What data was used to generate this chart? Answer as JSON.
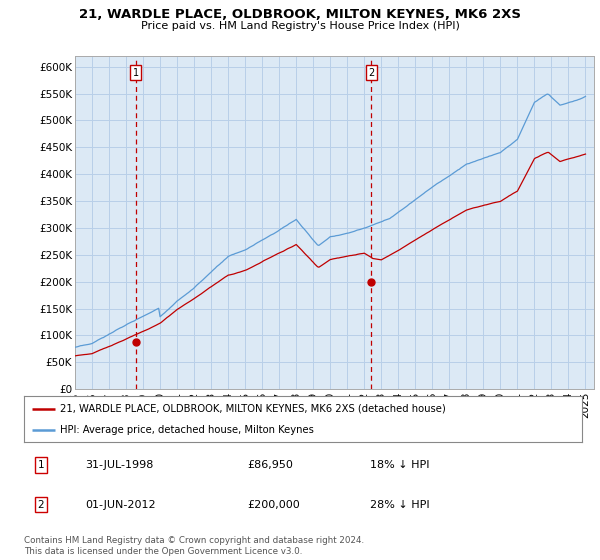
{
  "title": "21, WARDLE PLACE, OLDBROOK, MILTON KEYNES, MK6 2XS",
  "subtitle": "Price paid vs. HM Land Registry's House Price Index (HPI)",
  "ylabel_ticks": [
    "£0",
    "£50K",
    "£100K",
    "£150K",
    "£200K",
    "£250K",
    "£300K",
    "£350K",
    "£400K",
    "£450K",
    "£500K",
    "£550K",
    "£600K"
  ],
  "ylim": [
    0,
    620000
  ],
  "ytick_vals": [
    0,
    50000,
    100000,
    150000,
    200000,
    250000,
    300000,
    350000,
    400000,
    450000,
    500000,
    550000,
    600000
  ],
  "sale1_x": 1998.58,
  "sale1_y": 86950,
  "sale2_x": 2012.42,
  "sale2_y": 200000,
  "legend_line1": "21, WARDLE PLACE, OLDBROOK, MILTON KEYNES, MK6 2XS (detached house)",
  "legend_line2": "HPI: Average price, detached house, Milton Keynes",
  "table_row1": [
    "1",
    "31-JUL-1998",
    "£86,950",
    "18% ↓ HPI"
  ],
  "table_row2": [
    "2",
    "01-JUN-2012",
    "£200,000",
    "28% ↓ HPI"
  ],
  "footer": "Contains HM Land Registry data © Crown copyright and database right 2024.\nThis data is licensed under the Open Government Licence v3.0.",
  "hpi_color": "#5b9bd5",
  "price_color": "#c00000",
  "vline_color": "#c00000",
  "chart_bg": "#dce9f5",
  "bg_color": "#ffffff",
  "grid_color": "#b8cfe8",
  "xlim_start": 1995.25,
  "xlim_end": 2025.5,
  "xtick_years": [
    1995,
    1996,
    1997,
    1998,
    1999,
    2000,
    2001,
    2002,
    2003,
    2004,
    2005,
    2006,
    2007,
    2008,
    2009,
    2010,
    2011,
    2012,
    2013,
    2014,
    2015,
    2016,
    2017,
    2018,
    2019,
    2020,
    2021,
    2022,
    2023,
    2024,
    2025
  ]
}
